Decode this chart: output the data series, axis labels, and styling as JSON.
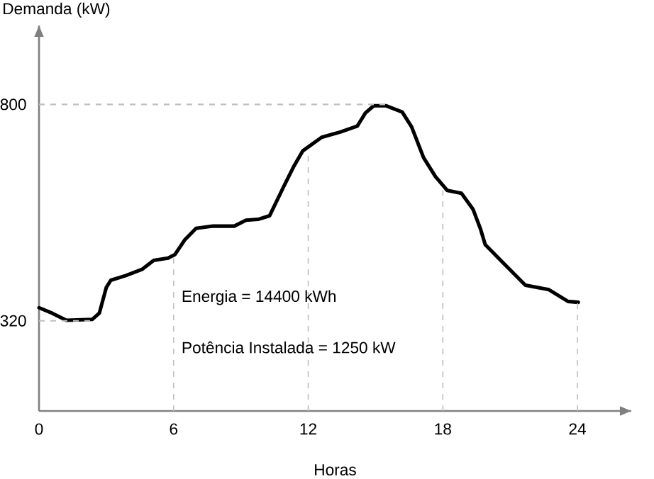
{
  "chart_data": {
    "type": "line",
    "xlabel": "Horas",
    "ylabel": "Demanda (kW)",
    "x": [
      0,
      0.58,
      1.22,
      2.37,
      2.69,
      3.0,
      3.2,
      3.85,
      4.59,
      5.11,
      5.75,
      6.06,
      6.49,
      7.0,
      7.75,
      8.7,
      9.23,
      9.76,
      10.28,
      10.92,
      11.34,
      11.76,
      12.6,
      13.45,
      14.19,
      14.55,
      14.92,
      15.46,
      16.19,
      16.61,
      17.14,
      17.67,
      18.2,
      18.83,
      19.35,
      19.67,
      19.89,
      20.62,
      21.68,
      22.73,
      23.58,
      24.04
    ],
    "series": [
      {
        "color": "#000000",
        "line_style": "solid",
        "values": [
          349,
          337,
          321,
          323,
          337,
          394,
          410,
          420,
          434,
          454,
          459,
          467,
          499,
          525,
          530,
          530,
          543,
          545,
          553,
          619,
          661,
          697,
          727,
          739,
          752,
          781,
          797,
          797,
          783,
          750,
          682,
          640,
          609,
          603,
          567,
          525,
          489,
          452,
          399,
          389,
          363,
          361
        ]
      }
    ],
    "xlim": [
      0,
      26.4
    ],
    "ylim": [
      120,
      975
    ],
    "xticks": [
      0,
      6,
      12,
      18,
      24
    ],
    "yticks": [
      320,
      800
    ],
    "ref_lines": [
      {
        "axis": "y",
        "value": 800,
        "color": "#bfbfbf",
        "line_style": "dashed"
      },
      {
        "axis": "y",
        "value": 320,
        "color": "#bfbfbf",
        "line_style": "dashed"
      },
      {
        "axis": "x",
        "value": 6,
        "color": "#bfbfbf",
        "line_style": "dashed"
      },
      {
        "axis": "x",
        "value": 12,
        "color": "#bfbfbf",
        "line_style": "dashed"
      },
      {
        "axis": "x",
        "value": 18,
        "color": "#bfbfbf",
        "line_style": "dashed"
      },
      {
        "axis": "x",
        "value": 24,
        "color": "#bfbfbf",
        "line_style": "dashed"
      }
    ],
    "annotations": [
      "Energia = 14400 kWh",
      "Potência Instalada = 1250 kW"
    ]
  }
}
